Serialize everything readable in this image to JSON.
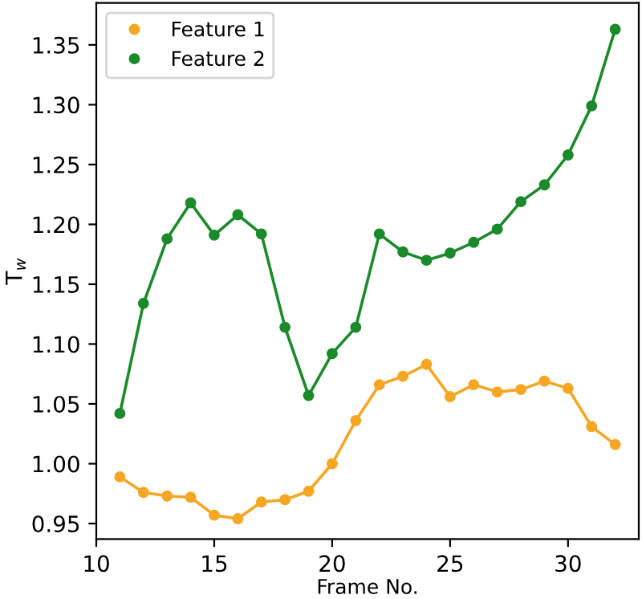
{
  "chart_data": {
    "type": "line",
    "xlabel": "Frame No.",
    "ylabel": "T$_{w}$",
    "x": [
      11,
      12,
      13,
      14,
      15,
      16,
      17,
      18,
      19,
      20,
      21,
      22,
      23,
      24,
      25,
      26,
      27,
      28,
      29,
      30,
      31,
      32
    ],
    "series": [
      {
        "name": "Feature 1",
        "color": "#f5a623",
        "values": [
          0.989,
          0.976,
          0.973,
          0.972,
          0.957,
          0.954,
          0.968,
          0.97,
          0.977,
          1.0,
          1.036,
          1.066,
          1.073,
          1.083,
          1.056,
          1.066,
          1.06,
          1.062,
          1.069,
          1.063,
          1.031,
          1.016
        ]
      },
      {
        "name": "Feature 2",
        "color": "#1a8a2a",
        "values": [
          1.042,
          1.134,
          1.188,
          1.218,
          1.191,
          1.208,
          1.192,
          1.114,
          1.057,
          1.092,
          1.114,
          1.192,
          1.177,
          1.17,
          1.176,
          1.185,
          1.196,
          1.219,
          1.233,
          1.258,
          1.299,
          1.363
        ]
      }
    ],
    "xlim": [
      10,
      33
    ],
    "xticks": [
      10,
      15,
      20,
      25,
      30
    ],
    "ylim": [
      0.937,
      1.385
    ],
    "yticks": [
      0.95,
      {
        "value": 1.0,
        "label": "1.00"
      },
      1.05,
      {
        "value": 1.1,
        "label": "1.10"
      },
      1.15,
      {
        "value": 1.2,
        "label": "1.20"
      },
      1.25,
      {
        "value": 1.3,
        "label": "1.30"
      },
      1.35
    ],
    "marker": "circle",
    "line_style": "solid",
    "legend": "top left",
    "grid": false
  }
}
